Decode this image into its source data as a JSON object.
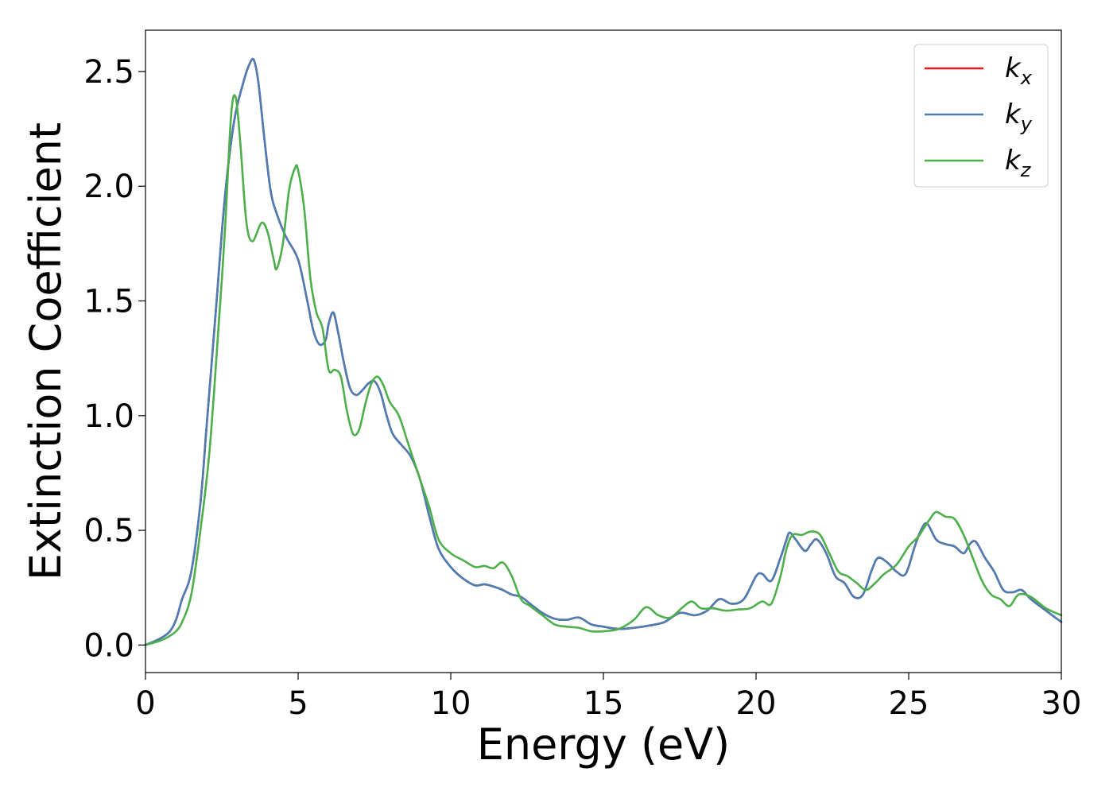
{
  "chart_data": {
    "type": "line",
    "xlabel": "Energy (eV)",
    "ylabel": "Extinction Coefficient",
    "xlim": [
      0,
      30
    ],
    "ylim": [
      -0.12,
      2.68
    ],
    "xticks": [
      0,
      5,
      10,
      15,
      20,
      25,
      30
    ],
    "yticks": [
      0.0,
      0.5,
      1.0,
      1.5,
      2.0,
      2.5
    ],
    "grid": false,
    "legend_position": "top-right",
    "series": [
      {
        "name": "k_x",
        "label_main": "k",
        "label_sub": "x",
        "color": "#e41a1c",
        "x": [
          0,
          0.5,
          0.8,
          1.0,
          1.2,
          1.5,
          1.8,
          2.0,
          2.3,
          2.6,
          2.9,
          3.2,
          3.4,
          3.55,
          3.7,
          3.9,
          4.1,
          4.3,
          4.6,
          5.0,
          5.3,
          5.5,
          5.7,
          5.9,
          6.0,
          6.15,
          6.3,
          6.5,
          6.7,
          6.9,
          7.1,
          7.3,
          7.5,
          7.7,
          7.9,
          8.1,
          8.4,
          8.7,
          9.0,
          9.3,
          9.6,
          10.0,
          10.4,
          10.8,
          11.1,
          11.4,
          11.7,
          12.0,
          12.3,
          12.6,
          13.0,
          13.4,
          13.8,
          14.2,
          14.6,
          15.0,
          15.5,
          16.0,
          16.5,
          17.0,
          17.5,
          18.0,
          18.4,
          18.8,
          19.2,
          19.6,
          20.0,
          20.2,
          20.5,
          20.8,
          21.0,
          21.1,
          21.3,
          21.6,
          21.8,
          22.0,
          22.3,
          22.6,
          22.9,
          23.2,
          23.5,
          23.8,
          24.0,
          24.3,
          24.6,
          24.9,
          25.2,
          25.4,
          25.6,
          25.9,
          26.2,
          26.5,
          26.8,
          27.0,
          27.2,
          27.5,
          27.8,
          28.1,
          28.4,
          28.7,
          29.0,
          29.5,
          30.0
        ],
        "y": [
          0.0,
          0.03,
          0.06,
          0.11,
          0.2,
          0.32,
          0.62,
          0.95,
          1.45,
          1.95,
          2.28,
          2.45,
          2.53,
          2.55,
          2.45,
          2.2,
          1.98,
          1.88,
          1.78,
          1.68,
          1.5,
          1.37,
          1.31,
          1.33,
          1.4,
          1.45,
          1.37,
          1.23,
          1.12,
          1.09,
          1.11,
          1.14,
          1.15,
          1.1,
          1.0,
          0.92,
          0.87,
          0.82,
          0.72,
          0.56,
          0.42,
          0.34,
          0.29,
          0.26,
          0.265,
          0.255,
          0.24,
          0.22,
          0.21,
          0.18,
          0.14,
          0.115,
          0.11,
          0.12,
          0.09,
          0.08,
          0.07,
          0.075,
          0.085,
          0.1,
          0.14,
          0.13,
          0.15,
          0.2,
          0.18,
          0.2,
          0.3,
          0.31,
          0.28,
          0.38,
          0.46,
          0.49,
          0.46,
          0.41,
          0.44,
          0.46,
          0.4,
          0.3,
          0.27,
          0.21,
          0.22,
          0.33,
          0.38,
          0.36,
          0.32,
          0.31,
          0.43,
          0.5,
          0.53,
          0.46,
          0.44,
          0.43,
          0.4,
          0.44,
          0.45,
          0.38,
          0.32,
          0.24,
          0.23,
          0.24,
          0.2,
          0.15,
          0.1
        ]
      },
      {
        "name": "k_y",
        "label_main": "k",
        "label_sub": "y",
        "color": "#4a7eb4",
        "x": [
          0,
          0.5,
          0.8,
          1.0,
          1.2,
          1.5,
          1.8,
          2.0,
          2.3,
          2.6,
          2.9,
          3.2,
          3.4,
          3.55,
          3.7,
          3.9,
          4.1,
          4.3,
          4.6,
          5.0,
          5.3,
          5.5,
          5.7,
          5.9,
          6.0,
          6.15,
          6.3,
          6.5,
          6.7,
          6.9,
          7.1,
          7.3,
          7.5,
          7.7,
          7.9,
          8.1,
          8.4,
          8.7,
          9.0,
          9.3,
          9.6,
          10.0,
          10.4,
          10.8,
          11.1,
          11.4,
          11.7,
          12.0,
          12.3,
          12.6,
          13.0,
          13.4,
          13.8,
          14.2,
          14.6,
          15.0,
          15.5,
          16.0,
          16.5,
          17.0,
          17.5,
          18.0,
          18.4,
          18.8,
          19.2,
          19.6,
          20.0,
          20.2,
          20.5,
          20.8,
          21.0,
          21.1,
          21.3,
          21.6,
          21.8,
          22.0,
          22.3,
          22.6,
          22.9,
          23.2,
          23.5,
          23.8,
          24.0,
          24.3,
          24.6,
          24.9,
          25.2,
          25.4,
          25.6,
          25.9,
          26.2,
          26.5,
          26.8,
          27.0,
          27.2,
          27.5,
          27.8,
          28.1,
          28.4,
          28.7,
          29.0,
          29.5,
          30.0
        ],
        "y": [
          0.0,
          0.03,
          0.06,
          0.11,
          0.2,
          0.32,
          0.62,
          0.95,
          1.45,
          1.95,
          2.28,
          2.45,
          2.53,
          2.55,
          2.45,
          2.2,
          1.98,
          1.88,
          1.78,
          1.68,
          1.5,
          1.37,
          1.31,
          1.33,
          1.4,
          1.45,
          1.37,
          1.23,
          1.12,
          1.09,
          1.11,
          1.14,
          1.15,
          1.1,
          1.0,
          0.92,
          0.87,
          0.82,
          0.72,
          0.56,
          0.42,
          0.34,
          0.29,
          0.26,
          0.265,
          0.255,
          0.24,
          0.22,
          0.21,
          0.18,
          0.14,
          0.115,
          0.11,
          0.12,
          0.09,
          0.08,
          0.07,
          0.075,
          0.085,
          0.1,
          0.14,
          0.13,
          0.15,
          0.2,
          0.18,
          0.2,
          0.3,
          0.31,
          0.28,
          0.38,
          0.46,
          0.49,
          0.46,
          0.41,
          0.44,
          0.46,
          0.4,
          0.3,
          0.27,
          0.21,
          0.22,
          0.33,
          0.38,
          0.36,
          0.32,
          0.31,
          0.43,
          0.5,
          0.53,
          0.46,
          0.44,
          0.43,
          0.4,
          0.44,
          0.45,
          0.38,
          0.32,
          0.24,
          0.23,
          0.24,
          0.2,
          0.15,
          0.1
        ]
      },
      {
        "name": "k_z",
        "label_main": "k",
        "label_sub": "z",
        "color": "#4daf4a",
        "x": [
          0,
          0.5,
          0.8,
          1.0,
          1.2,
          1.5,
          1.8,
          2.1,
          2.4,
          2.6,
          2.8,
          2.95,
          3.1,
          3.3,
          3.5,
          3.8,
          4.0,
          4.2,
          4.3,
          4.5,
          4.7,
          4.9,
          5.0,
          5.2,
          5.4,
          5.6,
          5.8,
          6.0,
          6.2,
          6.4,
          6.6,
          6.8,
          7.0,
          7.2,
          7.4,
          7.6,
          7.8,
          8.0,
          8.3,
          8.6,
          9.0,
          9.3,
          9.6,
          10.0,
          10.4,
          10.8,
          11.1,
          11.4,
          11.7,
          12.0,
          12.3,
          12.6,
          13.0,
          13.4,
          13.8,
          14.2,
          14.6,
          15.0,
          15.5,
          16.0,
          16.4,
          16.8,
          17.2,
          17.6,
          17.9,
          18.2,
          18.6,
          19.0,
          19.4,
          19.8,
          20.2,
          20.5,
          20.8,
          21.0,
          21.2,
          21.5,
          21.8,
          22.1,
          22.4,
          22.7,
          23.0,
          23.3,
          23.6,
          23.9,
          24.2,
          24.6,
          25.0,
          25.3,
          25.5,
          25.7,
          25.9,
          26.2,
          26.5,
          26.8,
          27.1,
          27.4,
          27.7,
          28.0,
          28.3,
          28.6,
          29.0,
          29.5,
          30.0
        ],
        "y": [
          0.0,
          0.02,
          0.04,
          0.06,
          0.1,
          0.22,
          0.5,
          0.85,
          1.4,
          1.8,
          2.3,
          2.39,
          2.2,
          1.85,
          1.76,
          1.84,
          1.8,
          1.68,
          1.64,
          1.75,
          1.98,
          2.08,
          2.07,
          1.9,
          1.6,
          1.45,
          1.38,
          1.2,
          1.2,
          1.17,
          1.02,
          0.92,
          0.94,
          1.05,
          1.14,
          1.17,
          1.13,
          1.06,
          1.0,
          0.88,
          0.72,
          0.6,
          0.46,
          0.4,
          0.37,
          0.34,
          0.345,
          0.335,
          0.36,
          0.3,
          0.2,
          0.17,
          0.13,
          0.09,
          0.08,
          0.075,
          0.06,
          0.06,
          0.07,
          0.11,
          0.165,
          0.13,
          0.12,
          0.165,
          0.19,
          0.16,
          0.16,
          0.15,
          0.155,
          0.16,
          0.19,
          0.18,
          0.3,
          0.42,
          0.48,
          0.48,
          0.495,
          0.48,
          0.4,
          0.32,
          0.3,
          0.27,
          0.24,
          0.27,
          0.31,
          0.35,
          0.43,
          0.47,
          0.51,
          0.55,
          0.58,
          0.56,
          0.55,
          0.48,
          0.38,
          0.28,
          0.22,
          0.2,
          0.17,
          0.22,
          0.21,
          0.16,
          0.13
        ]
      }
    ]
  }
}
